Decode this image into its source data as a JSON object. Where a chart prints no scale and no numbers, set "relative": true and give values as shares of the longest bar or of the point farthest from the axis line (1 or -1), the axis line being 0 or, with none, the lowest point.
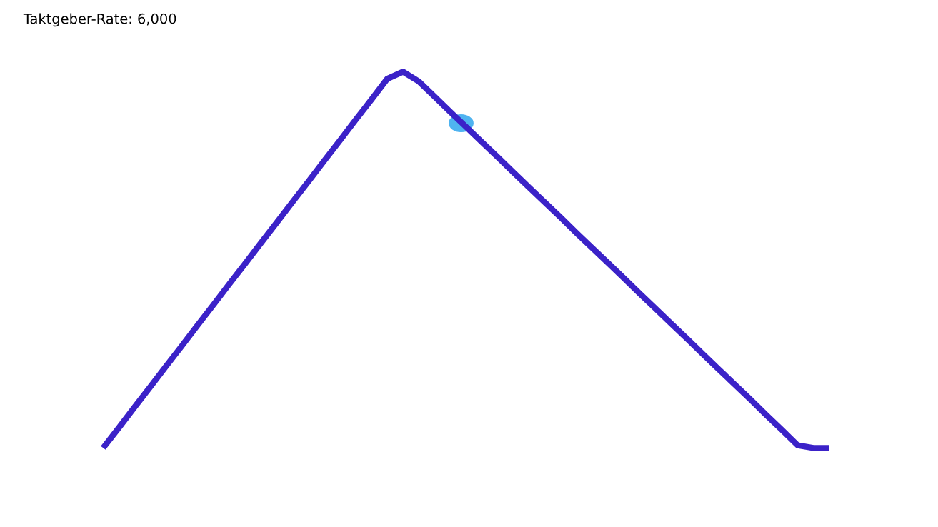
{
  "chart_data": {
    "type": "line",
    "title": "Taktgeber-Rate: 6,000",
    "relative": true,
    "categories": [
      null,
      null,
      null,
      null,
      null,
      null,
      null,
      null,
      null,
      null,
      null,
      null,
      null,
      null,
      null,
      null,
      null,
      null,
      null,
      null,
      null,
      null,
      null,
      null,
      null,
      null,
      null,
      null,
      null,
      null,
      null,
      null,
      null,
      null,
      null,
      null,
      null,
      null,
      null,
      null,
      null,
      null,
      null,
      null,
      null,
      null,
      null
    ],
    "series": [
      {
        "color": "#3b22c8",
        "values": [
          0,
          0.054,
          0.109,
          0.163,
          0.218,
          0.272,
          0.327,
          0.381,
          0.436,
          0.49,
          0.545,
          0.599,
          0.654,
          0.708,
          0.763,
          0.817,
          0.872,
          0.926,
          0.981,
          1,
          0.974,
          0.934,
          0.893,
          0.853,
          0.813,
          0.773,
          0.732,
          0.692,
          0.652,
          0.612,
          0.571,
          0.531,
          0.491,
          0.451,
          0.41,
          0.37,
          0.33,
          0.29,
          0.249,
          0.209,
          0.169,
          0.129,
          0.088,
          0.048,
          0.007,
          0,
          0
        ]
      }
    ]
  }
}
